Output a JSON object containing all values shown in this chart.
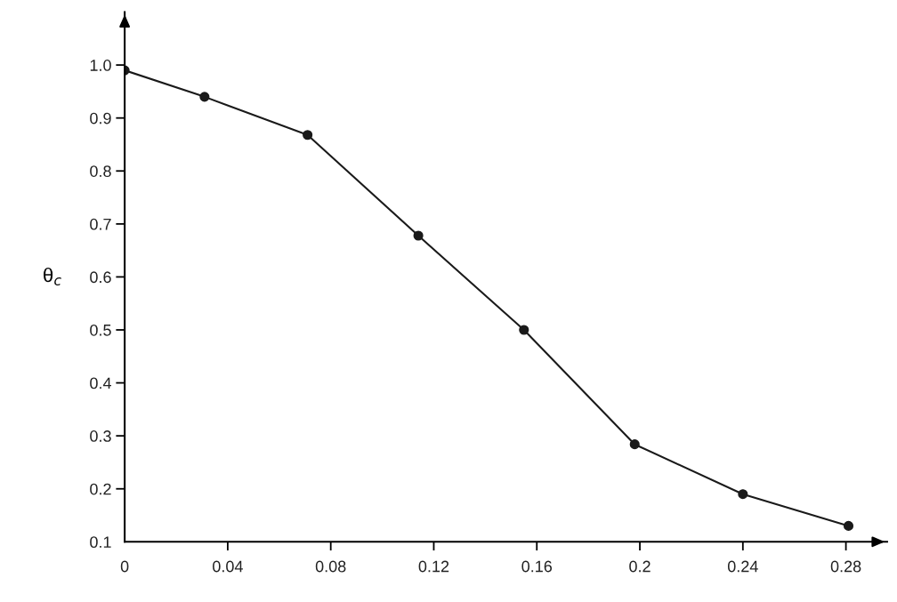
{
  "chart_data": {
    "type": "line",
    "ylabel": "θ$_{c}$",
    "x": [
      0,
      0.031,
      0.071,
      0.114,
      0.155,
      0.198,
      0.24,
      0.281
    ],
    "series": [
      {
        "color": "#1a1a1a",
        "values": [
          0.99,
          0.94,
          0.868,
          0.678,
          0.5,
          0.284,
          0.19,
          0.13
        ]
      }
    ],
    "xlim": [
      0,
      0.296
    ],
    "ylim": [
      0.1,
      1.1
    ],
    "xticks": [
      0,
      0.04,
      {
        "value": 0.08,
        "label": "0.08"
      },
      0.12,
      0.16,
      {
        "value": 0.2,
        "label": "0.2"
      },
      0.24,
      0.28
    ],
    "yticks": [
      {
        "value": 0.1,
        "label": "0.1"
      },
      {
        "value": 0.2,
        "label": "0.2"
      },
      {
        "value": 0.3,
        "label": "0.3"
      },
      {
        "value": 0.4,
        "label": "0.4"
      },
      {
        "value": 0.5,
        "label": "0.5"
      },
      {
        "value": 0.6,
        "label": "0.6"
      },
      {
        "value": 0.7,
        "label": "0.7"
      },
      {
        "value": 0.8,
        "label": "0.8"
      },
      {
        "value": 0.9,
        "label": "0.9"
      },
      {
        "value": 1.0,
        "label": "1.0"
      }
    ],
    "marker": "circle",
    "line_style": "solid",
    "grid": false,
    "legend": false
  }
}
